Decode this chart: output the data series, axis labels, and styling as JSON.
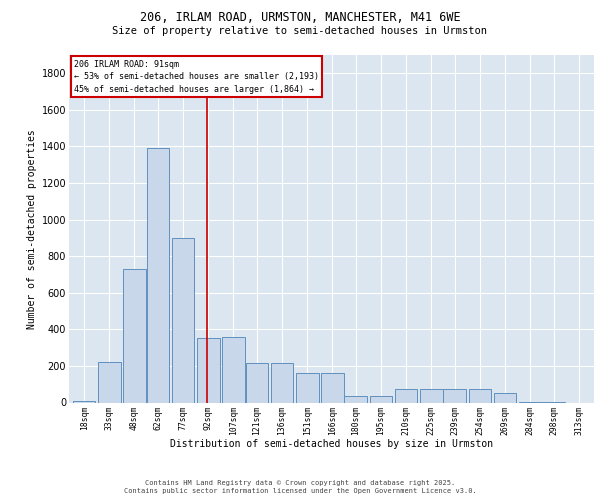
{
  "title_line1": "206, IRLAM ROAD, URMSTON, MANCHESTER, M41 6WE",
  "title_line2": "Size of property relative to semi-detached houses in Urmston",
  "xlabel": "Distribution of semi-detached houses by size in Urmston",
  "ylabel": "Number of semi-detached properties",
  "bar_color": "#c8d8ea",
  "bar_edge_color": "#6090c0",
  "background_color": "#dce6f0",
  "annotation_text": "206 IRLAM ROAD: 91sqm\n← 53% of semi-detached houses are smaller (2,193)\n45% of semi-detached houses are larger (1,864) →",
  "marker_value": 91,
  "marker_color": "#cc0000",
  "footer_line1": "Contains HM Land Registry data © Crown copyright and database right 2025.",
  "footer_line2": "Contains public sector information licensed under the Open Government Licence v3.0.",
  "bin_centers": [
    18,
    33,
    48,
    62,
    77,
    92,
    107,
    121,
    136,
    151,
    166,
    180,
    195,
    210,
    225,
    239,
    254,
    269,
    284,
    298,
    313
  ],
  "bin_labels": [
    "18sqm",
    "33sqm",
    "48sqm",
    "62sqm",
    "77sqm",
    "92sqm",
    "107sqm",
    "121sqm",
    "136sqm",
    "151sqm",
    "166sqm",
    "180sqm",
    "195sqm",
    "210sqm",
    "225sqm",
    "239sqm",
    "254sqm",
    "269sqm",
    "284sqm",
    "298sqm",
    "313sqm"
  ],
  "heights": [
    10,
    220,
    730,
    1390,
    900,
    350,
    360,
    215,
    215,
    160,
    160,
    35,
    35,
    75,
    75,
    75,
    75,
    50,
    3,
    3,
    0
  ],
  "ylim": [
    0,
    1900
  ],
  "yticks": [
    0,
    200,
    400,
    600,
    800,
    1000,
    1200,
    1400,
    1600,
    1800
  ],
  "figsize": [
    6.0,
    5.0
  ],
  "dpi": 100
}
